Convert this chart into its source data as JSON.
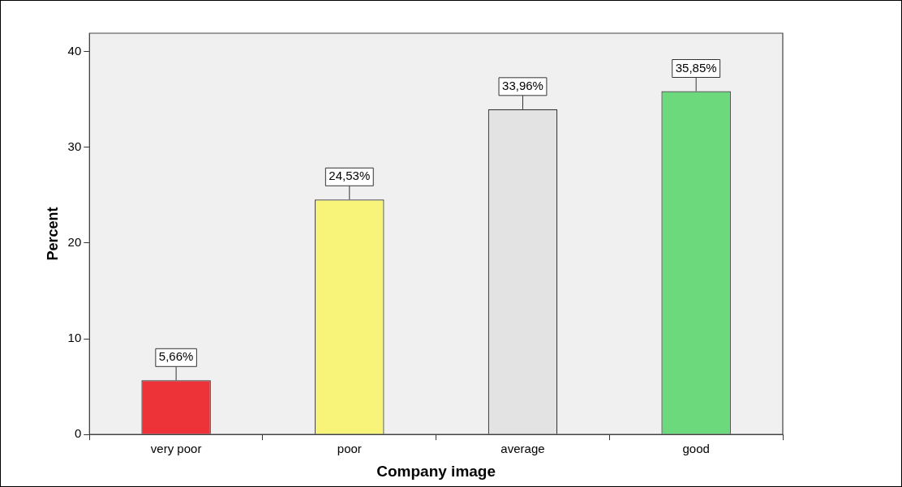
{
  "chart_data": {
    "type": "bar",
    "xlabel": "Company image",
    "ylabel": "Percent",
    "categories": [
      "very poor",
      "poor",
      "average",
      "good"
    ],
    "values": [
      5.66,
      24.53,
      33.96,
      35.85
    ],
    "colors": [
      "#ee3338",
      "#f8f47a",
      "#e3e3e3",
      "#6cd97c"
    ],
    "value_labels": [
      "5,66%",
      "24,53%",
      "33,96%",
      "35,85%"
    ],
    "ylim": [
      0,
      41.9
    ],
    "yticks": [
      0,
      10,
      20,
      30,
      40
    ],
    "grid": false,
    "legend": false
  }
}
